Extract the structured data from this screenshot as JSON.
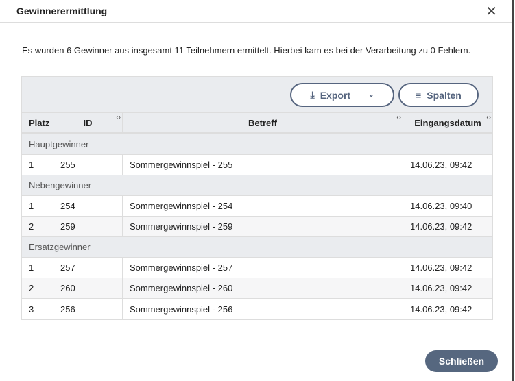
{
  "dialog": {
    "title": "Gewinnerermittlung",
    "message": "Es wurden 6 Gewinner aus insgesamt 11 Teilnehmern ermittelt. Hierbei kam es bei der Verarbeitung zu 0 Fehlern.",
    "close_label": "Schließen"
  },
  "toolbar": {
    "export_label": "Export",
    "columns_label": "Spalten"
  },
  "columns": [
    "Platz",
    "ID",
    "Betreff",
    "Eingangsdatum"
  ],
  "groups": [
    {
      "label": "Hauptgewinner",
      "rows": [
        [
          "1",
          "255",
          "Sommergewinnspiel - 255",
          "14.06.23, 09:42"
        ]
      ]
    },
    {
      "label": "Nebengewinner",
      "rows": [
        [
          "1",
          "254",
          "Sommergewinnspiel - 254",
          "14.06.23, 09:40"
        ],
        [
          "2",
          "259",
          "Sommergewinnspiel - 259",
          "14.06.23, 09:42"
        ]
      ]
    },
    {
      "label": "Ersatzgewinner",
      "rows": [
        [
          "1",
          "257",
          "Sommergewinnspiel - 257",
          "14.06.23, 09:42"
        ],
        [
          "2",
          "260",
          "Sommergewinnspiel - 260",
          "14.06.23, 09:42"
        ],
        [
          "3",
          "256",
          "Sommergewinnspiel - 256",
          "14.06.23, 09:42"
        ]
      ]
    }
  ]
}
